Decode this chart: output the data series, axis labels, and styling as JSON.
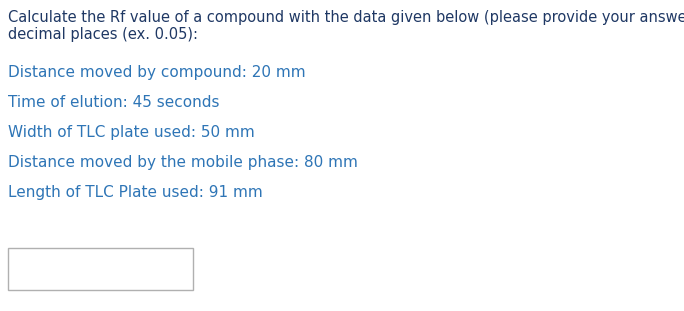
{
  "background_color": "#ffffff",
  "header_line1": "Calculate the Rf value of a compound with the data given below (please provide your answer to two",
  "header_line2": "decimal places (ex. 0.05):",
  "header_color": "#1f3864",
  "items": [
    "Distance moved by compound: 20 mm",
    "Time of elution: 45 seconds",
    "Width of TLC plate used: 50 mm",
    "Distance moved by the mobile phase: 80 mm",
    "Length of TLC Plate used: 91 mm"
  ],
  "item_color": "#2e75b6",
  "header_fontsize": 10.5,
  "item_fontsize": 11,
  "fig_width": 6.84,
  "fig_height": 3.11,
  "dpi": 100
}
